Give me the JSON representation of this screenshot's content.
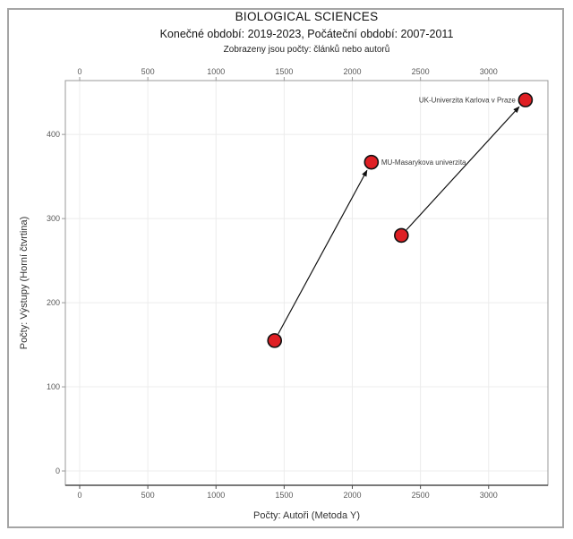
{
  "chart_data": {
    "type": "scatter",
    "title": "BIOLOGICAL SCIENCES",
    "subtitle": "Konečné období: 2019-2023, Počáteční období: 2007-2011",
    "note": "Zobrazeny jsou počty: článků nebo autorů",
    "xlabel": "Počty: Autoři (Metoda Y)",
    "ylabel": "Počty: Výstupy (Horní čtvrtina)",
    "xlim": [
      -105,
      3435
    ],
    "ylim": [
      -17,
      464
    ],
    "xticks": [
      0,
      500,
      1000,
      1500,
      2000,
      2500,
      3000
    ],
    "yticks": [
      0,
      100,
      200,
      300,
      400
    ],
    "grid": true,
    "legend_position": "none",
    "axes": {
      "top_axis_ticks": true,
      "bottom_axis_ticks": true,
      "left_axis_ticks": true
    },
    "colors": {
      "marker_fill": "#df1f24",
      "marker_stroke": "#111111",
      "arrow": "#111111",
      "gridline": "#ececec",
      "plot_border": "#999999",
      "bottom_axis_line": "#4d4d4d",
      "tick_label": "#595959"
    },
    "marker": {
      "shape": "circle",
      "radius_px": 7.5
    },
    "series": [
      {
        "name": "MU-Masarykova univerzita",
        "label_side": "right",
        "start": {
          "period": "2007-2011",
          "x": 1430,
          "y": 155
        },
        "end": {
          "period": "2019-2023",
          "x": 2140,
          "y": 367
        }
      },
      {
        "name": "UK-Univerzita Karlova v Praze",
        "label_side": "left",
        "start": {
          "period": "2007-2011",
          "x": 2360,
          "y": 280
        },
        "end": {
          "period": "2019-2023",
          "x": 3270,
          "y": 441
        }
      }
    ]
  }
}
